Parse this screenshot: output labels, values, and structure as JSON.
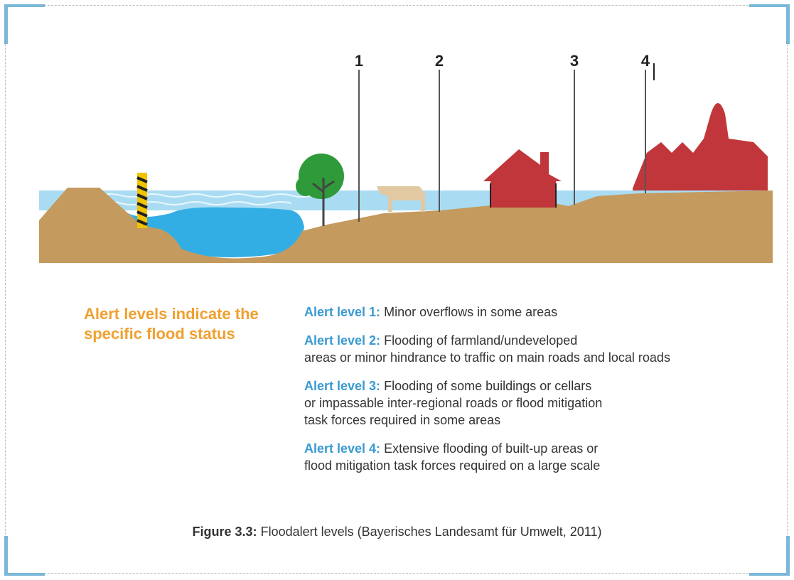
{
  "markers": [
    "1",
    "2",
    "3",
    "4"
  ],
  "heading": "Alert levels indicate the specific flood status",
  "alerts": [
    {
      "label": "Alert level 1:",
      "lines": [
        "Minor overflows in some areas"
      ]
    },
    {
      "label": "Alert level 2:",
      "lines": [
        "Flooding of farmland/undeveloped",
        "areas or minor hindrance to traffic on main roads and local roads"
      ]
    },
    {
      "label": "Alert level 3:",
      "lines": [
        "Flooding of some buildings or cellars",
        "or impassable inter-regional roads or flood mitigation",
        "task forces required in some areas"
      ]
    },
    {
      "label": "Alert level 4:",
      "lines": [
        "Extensive flooding of built-up areas or",
        "flood mitigation task forces required on a large scale"
      ]
    }
  ],
  "caption": {
    "label": "Figure 3.3:",
    "text": "Floodalert levels (Bayerisches Landesamt für Umwelt, 2011)"
  }
}
